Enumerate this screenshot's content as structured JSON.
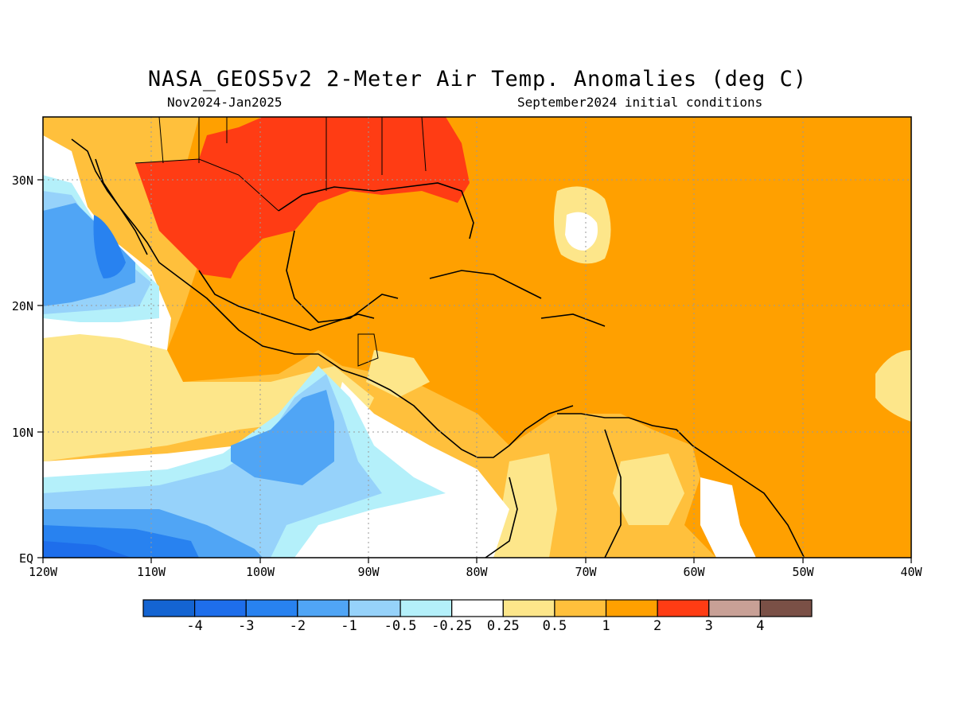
{
  "title": "NASA_GEOS5v2 2-Meter Air Temp. Anomalies (deg C)",
  "subtitle_left": "Nov2024-Jan2025",
  "subtitle_right": "September2024 initial conditions",
  "map": {
    "region": "Gulf of Mexico, Caribbean, Central America, northern South America",
    "lon_range": [
      -120,
      -40
    ],
    "lat_range": [
      0,
      35
    ],
    "x_tick_labels": [
      "120W",
      "110W",
      "100W",
      "90W",
      "80W",
      "70W",
      "60W",
      "50W",
      "40W"
    ],
    "y_tick_labels": [
      "EQ",
      "10N",
      "20N",
      "30N"
    ],
    "gridlines": "dotted"
  },
  "colorbar": {
    "colors": [
      "#1464d2",
      "#1e6eeb",
      "#2882f0",
      "#50a5f5",
      "#96d2fa",
      "#b4f0fa",
      "#ffffff",
      "#fde68a",
      "#ffc03c",
      "#ffa000",
      "#ff3c14",
      "#c8a096",
      "#7a5046"
    ],
    "labels": [
      "-4",
      "-3",
      "-2",
      "-1",
      "-0.5",
      "-0.25",
      "0.25",
      "0.5",
      "1",
      "2",
      "3",
      "4"
    ]
  }
}
